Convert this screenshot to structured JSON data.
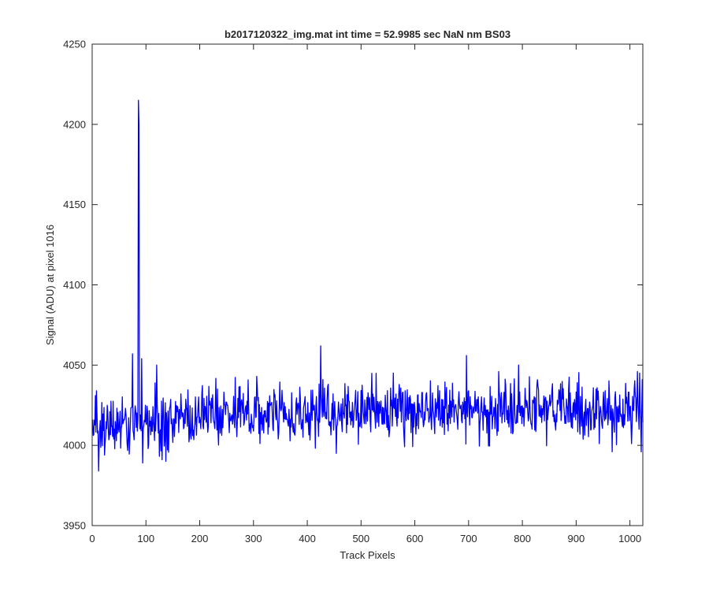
{
  "chart_data": {
    "type": "line",
    "title": "b2017120322_img.mat int time = 52.9985 sec  NaN nm BS03",
    "xlabel": "Track Pixels",
    "ylabel": "Signal (ADU) at pixel 1016",
    "xlim": [
      0,
      1024
    ],
    "ylim": [
      3950,
      4250
    ],
    "xticks": [
      0,
      100,
      200,
      300,
      400,
      500,
      600,
      700,
      800,
      900,
      1000
    ],
    "yticks": [
      3950,
      4000,
      4050,
      4100,
      4150,
      4200,
      4250
    ],
    "grid": false,
    "legend": "none",
    "series": [
      {
        "color": "#0000ff",
        "n_points": 1024,
        "baseline_start": 4010,
        "baseline_end": 4022,
        "noise_sd": 9,
        "seed": 20171203,
        "spikes": [
          {
            "x": 1,
            "y": 4016
          },
          {
            "x": 6,
            "y": 4031
          },
          {
            "x": 8,
            "y": 4034
          },
          {
            "x": 12,
            "y": 3984
          },
          {
            "x": 75,
            "y": 4057
          },
          {
            "x": 86,
            "y": 4215
          },
          {
            "x": 87,
            "y": 4200
          },
          {
            "x": 92,
            "y": 4054
          },
          {
            "x": 94,
            "y": 3989
          },
          {
            "x": 120,
            "y": 4050
          },
          {
            "x": 130,
            "y": 3991
          },
          {
            "x": 137,
            "y": 3990
          },
          {
            "x": 425,
            "y": 4062
          },
          {
            "x": 454,
            "y": 3995
          },
          {
            "x": 696,
            "y": 4056
          },
          {
            "x": 756,
            "y": 4046
          },
          {
            "x": 793,
            "y": 4050
          },
          {
            "x": 967,
            "y": 3996
          },
          {
            "x": 1014,
            "y": 4046
          },
          {
            "x": 1018,
            "y": 4045
          },
          {
            "x": 1021,
            "y": 3996
          },
          {
            "x": 1023,
            "y": 4041
          }
        ]
      }
    ]
  }
}
